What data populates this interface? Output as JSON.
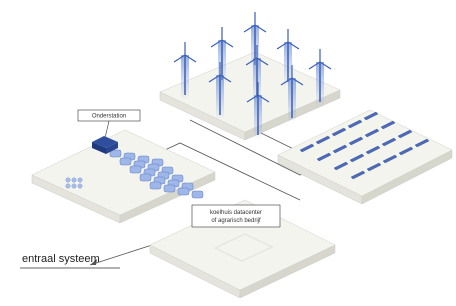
{
  "labels": {
    "substation": "Onderstation",
    "consumer": [
      "koelhuis datacenter",
      "of agrarisch bedrijf"
    ],
    "central": "entraal systeem"
  }
}
